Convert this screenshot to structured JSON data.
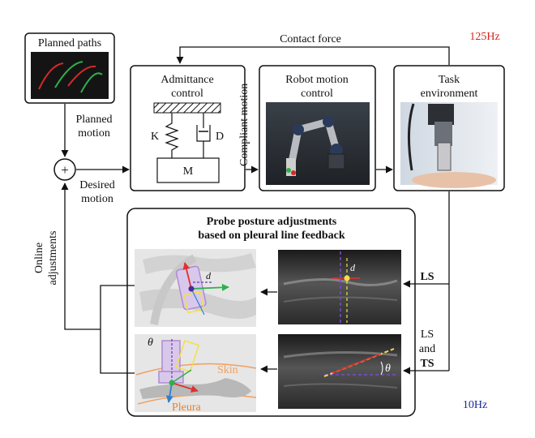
{
  "blocks": {
    "planned_paths": "Planned paths",
    "admittance": [
      "Admittance",
      "control"
    ],
    "robot_motion": [
      "Robot motion",
      "control"
    ],
    "task_env": [
      "Task",
      "environment"
    ],
    "probe_adjust": [
      "Probe posture adjustments",
      "based on pleural line feedback"
    ]
  },
  "spring_labels": {
    "k": "K",
    "d": "D",
    "m": "M"
  },
  "signals": {
    "contact_force": "Contact force",
    "planned_motion": [
      "Planned",
      "motion"
    ],
    "desired_motion": [
      "Desired",
      "motion"
    ],
    "compliant_motion": "Compliant motion",
    "online_adjustments": [
      "Online",
      "adjustments"
    ],
    "summing_sign": "+"
  },
  "feedback_labels": {
    "ls": "LS",
    "ls_and_ts": [
      "LS",
      "and",
      "TS"
    ]
  },
  "image_labels": {
    "d": "d",
    "theta": "θ",
    "skin": "Skin",
    "pleura": "Pleura"
  },
  "rates": {
    "high": "125Hz",
    "low": "10Hz"
  },
  "colors": {
    "high_rate": "#d4241c",
    "low_rate": "#1a2a9a",
    "skin": "#f0a060",
    "probe": "#b08ad0"
  }
}
